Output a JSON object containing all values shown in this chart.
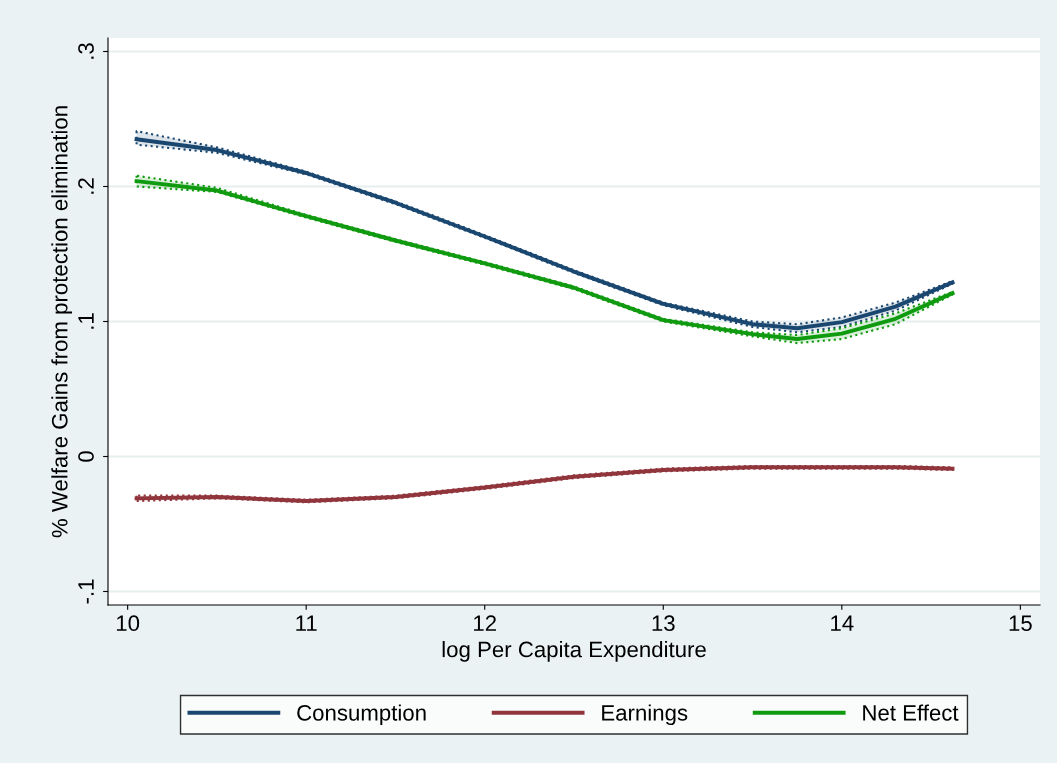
{
  "chart_data": {
    "type": "line",
    "xlabel": "log Per Capita Expenditure",
    "ylabel": "% Welfare Gains from protection elimination",
    "xlim": [
      9.89,
      15.11
    ],
    "ylim": [
      -0.11,
      0.31
    ],
    "xticks": [
      10,
      11,
      12,
      13,
      14,
      15
    ],
    "yticks": [
      {
        "value": -0.1,
        "label": "-.1"
      },
      {
        "value": 0,
        "label": "0"
      },
      {
        "value": 0.1,
        "label": ".1"
      },
      {
        "value": 0.2,
        "label": ".2"
      },
      {
        "value": 0.3,
        "label": ".3"
      }
    ],
    "grid": "y",
    "legend": "bottom",
    "line_style": "solid",
    "marker": "none",
    "x": [
      10.05,
      10.5,
      11,
      11.5,
      12,
      12.5,
      13,
      13.5,
      13.75,
      14,
      14.3,
      14.62
    ],
    "series": [
      {
        "name": "Consumption",
        "color": "#1a476f",
        "values": [
          0.235,
          0.227,
          0.21,
          0.188,
          0.163,
          0.137,
          0.113,
          0.098,
          0.095,
          0.0995,
          0.111,
          0.129
        ],
        "lower": [
          0.231,
          0.225,
          0.209,
          0.187,
          0.162,
          0.136,
          0.112,
          0.096,
          0.092,
          0.096,
          0.108,
          0.128
        ],
        "upper": [
          0.241,
          0.229,
          0.211,
          0.189,
          0.164,
          0.138,
          0.114,
          0.1,
          0.098,
          0.103,
          0.114,
          0.13
        ]
      },
      {
        "name": "Earnings",
        "color": "#90353b",
        "values": [
          -0.031,
          -0.03,
          -0.033,
          -0.03,
          -0.023,
          -0.015,
          -0.01,
          -0.008,
          -0.008,
          -0.008,
          -0.008,
          -0.009
        ],
        "lower": [
          -0.033,
          -0.031,
          -0.034,
          -0.031,
          -0.024,
          -0.016,
          -0.011,
          -0.009,
          -0.009,
          -0.009,
          -0.009,
          -0.01
        ],
        "upper": [
          -0.029,
          -0.029,
          -0.032,
          -0.029,
          -0.022,
          -0.014,
          -0.009,
          -0.007,
          -0.007,
          -0.007,
          -0.007,
          -0.008
        ]
      },
      {
        "name": "Net Effect",
        "color": "#109a10",
        "values": [
          0.204,
          0.197,
          0.178,
          0.16,
          0.143,
          0.125,
          0.101,
          0.0906,
          0.087,
          0.091,
          0.102,
          0.121
        ],
        "lower": [
          0.2,
          0.196,
          0.177,
          0.159,
          0.142,
          0.124,
          0.1,
          0.089,
          0.084,
          0.087,
          0.098,
          0.12
        ],
        "upper": [
          0.208,
          0.199,
          0.179,
          0.161,
          0.144,
          0.126,
          0.102,
          0.092,
          0.09,
          0.095,
          0.106,
          0.122
        ]
      }
    ]
  }
}
